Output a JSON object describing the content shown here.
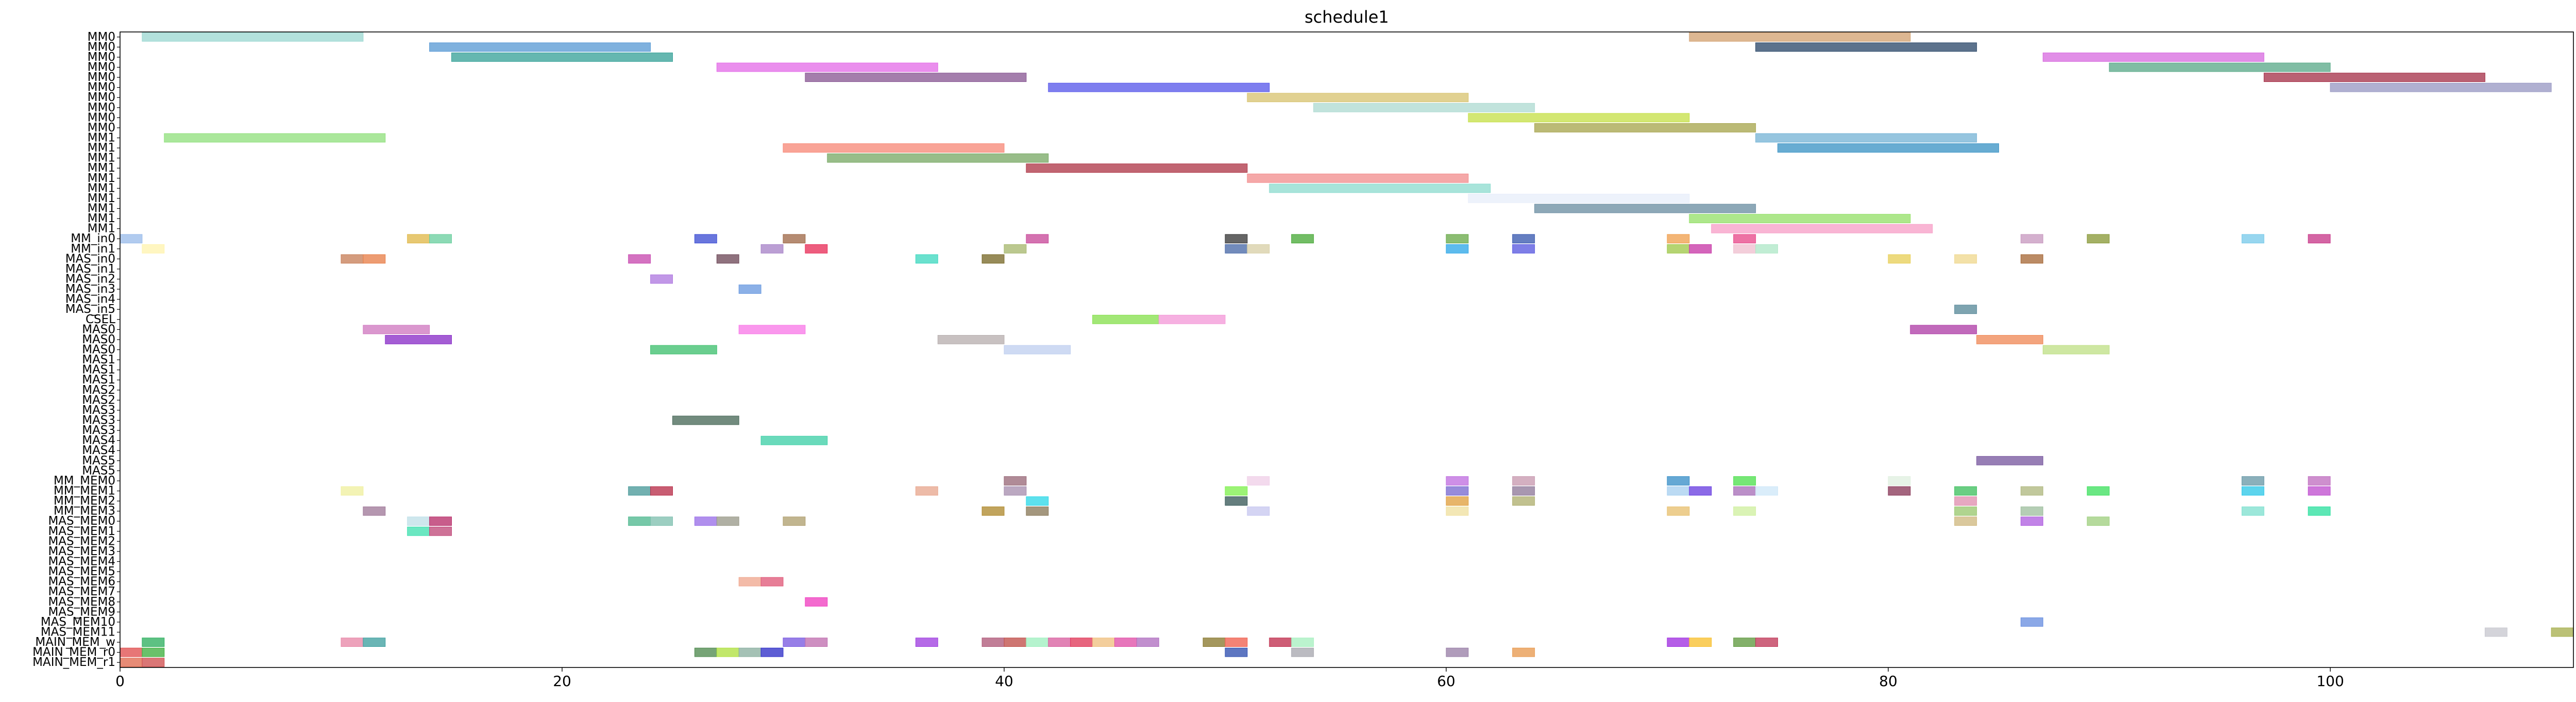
{
  "chart_data": {
    "type": "gantt",
    "title": "schedule1",
    "xlabel": "",
    "ylabel": "",
    "xlim": [
      0,
      111
    ],
    "x_ticks": [
      0,
      20,
      40,
      60,
      80,
      100
    ],
    "grid": false,
    "rows": [
      "MM0",
      "MM0",
      "MM0",
      "MM0",
      "MM0",
      "MM0",
      "MM0",
      "MM0",
      "MM0",
      "MM0",
      "MM1",
      "MM1",
      "MM1",
      "MM1",
      "MM1",
      "MM1",
      "MM1",
      "MM1",
      "MM1",
      "MM1",
      "MM_in0",
      "MM_in1",
      "MAS_in0",
      "MAS_in1",
      "MAS_in2",
      "MAS_in3",
      "MAS_in4",
      "MAS_in5",
      "CSEL",
      "MAS0",
      "MAS0",
      "MAS0",
      "MAS1",
      "MAS1",
      "MAS1",
      "MAS2",
      "MAS2",
      "MAS3",
      "MAS3",
      "MAS3",
      "MAS4",
      "MAS4",
      "MAS5",
      "MAS5",
      "MM_MEM0",
      "MM_MEM1",
      "MM_MEM2",
      "MM_MEM3",
      "MAS_MEM0",
      "MAS_MEM1",
      "MAS_MEM2",
      "MAS_MEM3",
      "MAS_MEM4",
      "MAS_MEM5",
      "MAS_MEM6",
      "MAS_MEM7",
      "MAS_MEM8",
      "MAS_MEM9",
      "MAS_MEM10",
      "MAS_MEM11",
      "MAIN_MEM_w",
      "MAIN_MEM_r0",
      "MAIN_MEM_r1"
    ],
    "tasks": [
      {
        "row": 0,
        "start": 1,
        "end": 11,
        "color": "#9dd9d2"
      },
      {
        "row": 0,
        "start": 71,
        "end": 81,
        "color": "#d4a373"
      },
      {
        "row": 1,
        "start": 14,
        "end": 24,
        "color": "#5b9bd5"
      },
      {
        "row": 1,
        "start": 74,
        "end": 84,
        "color": "#2e4a6b"
      },
      {
        "row": 2,
        "start": 15,
        "end": 25,
        "color": "#3aa39a"
      },
      {
        "row": 2,
        "start": 87,
        "end": 97,
        "color": "#d86ee0"
      },
      {
        "row": 3,
        "start": 27,
        "end": 37,
        "color": "#e46ee8"
      },
      {
        "row": 3,
        "start": 90,
        "end": 100,
        "color": "#5cab8a"
      },
      {
        "row": 4,
        "start": 31,
        "end": 41,
        "color": "#8a5a95"
      },
      {
        "row": 4,
        "start": 97,
        "end": 107,
        "color": "#a6344c"
      },
      {
        "row": 5,
        "start": 42,
        "end": 52,
        "color": "#5a5aea"
      },
      {
        "row": 5,
        "start": 100,
        "end": 110,
        "color": "#9a9ac4"
      },
      {
        "row": 6,
        "start": 51,
        "end": 61,
        "color": "#d8c472"
      },
      {
        "row": 7,
        "start": 54,
        "end": 64,
        "color": "#b0dbd2"
      },
      {
        "row": 8,
        "start": 61,
        "end": 71,
        "color": "#c6e04a"
      },
      {
        "row": 9,
        "start": 64,
        "end": 74,
        "color": "#a8a650"
      },
      {
        "row": 10,
        "start": 2,
        "end": 12,
        "color": "#92e07f"
      },
      {
        "row": 10,
        "start": 74,
        "end": 84,
        "color": "#79b5d6"
      },
      {
        "row": 11,
        "start": 30,
        "end": 40,
        "color": "#f78a7a"
      },
      {
        "row": 11,
        "start": 75,
        "end": 85,
        "color": "#3e95c5"
      },
      {
        "row": 12,
        "start": 32,
        "end": 42,
        "color": "#7bab68"
      },
      {
        "row": 13,
        "start": 41,
        "end": 51,
        "color": "#b03a4a"
      },
      {
        "row": 14,
        "start": 51,
        "end": 61,
        "color": "#f28f90"
      },
      {
        "row": 15,
        "start": 52,
        "end": 62,
        "color": "#8fdcd0"
      },
      {
        "row": 16,
        "start": 61,
        "end": 71,
        "color": "#e8eefa"
      },
      {
        "row": 17,
        "start": 64,
        "end": 74,
        "color": "#6d8fa3"
      },
      {
        "row": 18,
        "start": 71,
        "end": 81,
        "color": "#96e06a"
      },
      {
        "row": 19,
        "start": 72,
        "end": 82,
        "color": "#f7a0c8"
      },
      {
        "row": 20,
        "start": 0,
        "end": 1,
        "color": "#9bbdea"
      },
      {
        "row": 20,
        "start": 13,
        "end": 14,
        "color": "#e0b84a"
      },
      {
        "row": 20,
        "start": 14,
        "end": 15,
        "color": "#6ccfa0"
      },
      {
        "row": 20,
        "start": 26,
        "end": 27,
        "color": "#3f4fd4"
      },
      {
        "row": 20,
        "start": 30,
        "end": 31,
        "color": "#a06a4a"
      },
      {
        "row": 20,
        "start": 41,
        "end": 42,
        "color": "#c84a9a"
      },
      {
        "row": 20,
        "start": 50,
        "end": 51,
        "color": "#3a3a3a"
      },
      {
        "row": 20,
        "start": 53,
        "end": 54,
        "color": "#4aaa3a"
      },
      {
        "row": 20,
        "start": 60,
        "end": 61,
        "color": "#6aaa4a"
      },
      {
        "row": 20,
        "start": 63,
        "end": 64,
        "color": "#3a5ab0"
      },
      {
        "row": 20,
        "start": 70,
        "end": 71,
        "color": "#f0a050"
      },
      {
        "row": 20,
        "start": 73,
        "end": 74,
        "color": "#e84a8a"
      },
      {
        "row": 20,
        "start": 86,
        "end": 87,
        "color": "#c89ac0"
      },
      {
        "row": 20,
        "start": 89,
        "end": 90,
        "color": "#8a9a3a"
      },
      {
        "row": 20,
        "start": 96,
        "end": 97,
        "color": "#7acaea"
      },
      {
        "row": 20,
        "start": 99,
        "end": 100,
        "color": "#c83a8a"
      },
      {
        "row": 21,
        "start": 1,
        "end": 2,
        "color": "#fff4b0"
      },
      {
        "row": 21,
        "start": 29,
        "end": 30,
        "color": "#a884c8"
      },
      {
        "row": 21,
        "start": 31,
        "end": 32,
        "color": "#e8305a"
      },
      {
        "row": 21,
        "start": 40,
        "end": 41,
        "color": "#a8b870"
      },
      {
        "row": 21,
        "start": 50,
        "end": 51,
        "color": "#4a6aa8"
      },
      {
        "row": 21,
        "start": 51,
        "end": 52,
        "color": "#d8d0a8"
      },
      {
        "row": 21,
        "start": 60,
        "end": 61,
        "color": "#30a8e8"
      },
      {
        "row": 21,
        "start": 63,
        "end": 64,
        "color": "#5a5ae0"
      },
      {
        "row": 21,
        "start": 70,
        "end": 71,
        "color": "#a0c84a"
      },
      {
        "row": 21,
        "start": 71,
        "end": 72,
        "color": "#c83aa8"
      },
      {
        "row": 21,
        "start": 73,
        "end": 74,
        "color": "#f0c0d0"
      },
      {
        "row": 21,
        "start": 74,
        "end": 75,
        "color": "#b0e8c8"
      },
      {
        "row": 22,
        "start": 10,
        "end": 11,
        "color": "#c8805a"
      },
      {
        "row": 22,
        "start": 11,
        "end": 12,
        "color": "#e8804a"
      },
      {
        "row": 22,
        "start": 23,
        "end": 24,
        "color": "#c84ab0"
      },
      {
        "row": 22,
        "start": 27,
        "end": 28,
        "color": "#704a5a"
      },
      {
        "row": 22,
        "start": 36,
        "end": 37,
        "color": "#40d8c0"
      },
      {
        "row": 22,
        "start": 39,
        "end": 40,
        "color": "#7a6a2a"
      },
      {
        "row": 22,
        "start": 80,
        "end": 81,
        "color": "#e8d05a"
      },
      {
        "row": 22,
        "start": 83,
        "end": 84,
        "color": "#f0d890"
      },
      {
        "row": 22,
        "start": 86,
        "end": 87,
        "color": "#a86a3a"
      },
      {
        "row": 24,
        "start": 24,
        "end": 25,
        "color": "#b07ae0"
      },
      {
        "row": 25,
        "start": 28,
        "end": 29,
        "color": "#6a9ae0"
      },
      {
        "row": 27,
        "start": 83,
        "end": 84,
        "color": "#5a8a9a"
      },
      {
        "row": 28,
        "start": 44,
        "end": 47,
        "color": "#88e050"
      },
      {
        "row": 28,
        "start": 47,
        "end": 50,
        "color": "#f49ad8"
      },
      {
        "row": 29,
        "start": 11,
        "end": 14,
        "color": "#d07ac0"
      },
      {
        "row": 29,
        "start": 28,
        "end": 31,
        "color": "#f87ae8"
      },
      {
        "row": 29,
        "start": 81,
        "end": 84,
        "color": "#b040a8"
      },
      {
        "row": 30,
        "start": 12,
        "end": 15,
        "color": "#8a30c8"
      },
      {
        "row": 30,
        "start": 37,
        "end": 40,
        "color": "#b8b0b0"
      },
      {
        "row": 30,
        "start": 84,
        "end": 87,
        "color": "#f08a5a"
      },
      {
        "row": 31,
        "start": 24,
        "end": 27,
        "color": "#40c070"
      },
      {
        "row": 31,
        "start": 40,
        "end": 43,
        "color": "#c0d0f0"
      },
      {
        "row": 31,
        "start": 87,
        "end": 90,
        "color": "#c0e088"
      },
      {
        "row": 38,
        "start": 25,
        "end": 28,
        "color": "#4a6a5a"
      },
      {
        "row": 40,
        "start": 29,
        "end": 32,
        "color": "#40d0a8"
      },
      {
        "row": 42,
        "start": 84,
        "end": 87,
        "color": "#7a5aa0"
      },
      {
        "row": 44,
        "start": 40,
        "end": 41,
        "color": "#9a6a7a"
      },
      {
        "row": 44,
        "start": 51,
        "end": 52,
        "color": "#f0d0e8"
      },
      {
        "row": 44,
        "start": 60,
        "end": 61,
        "color": "#c070e0"
      },
      {
        "row": 44,
        "start": 63,
        "end": 64,
        "color": "#c89ab0"
      },
      {
        "row": 44,
        "start": 70,
        "end": 71,
        "color": "#3a90c8"
      },
      {
        "row": 44,
        "start": 73,
        "end": 74,
        "color": "#50e050"
      },
      {
        "row": 44,
        "start": 80,
        "end": 81,
        "color": "#e0f0e0"
      },
      {
        "row": 44,
        "start": 96,
        "end": 97,
        "color": "#6a9aa8"
      },
      {
        "row": 44,
        "start": 99,
        "end": 100,
        "color": "#c070c0"
      },
      {
        "row": 45,
        "start": 10,
        "end": 11,
        "color": "#f0f0a0"
      },
      {
        "row": 45,
        "start": 23,
        "end": 24,
        "color": "#4a9a9a"
      },
      {
        "row": 45,
        "start": 24,
        "end": 25,
        "color": "#b8304a"
      },
      {
        "row": 45,
        "start": 36,
        "end": 37,
        "color": "#e8a890"
      },
      {
        "row": 45,
        "start": 40,
        "end": 41,
        "color": "#a890b0"
      },
      {
        "row": 45,
        "start": 50,
        "end": 51,
        "color": "#80f050"
      },
      {
        "row": 45,
        "start": 60,
        "end": 61,
        "color": "#7a6ad0"
      },
      {
        "row": 45,
        "start": 63,
        "end": 64,
        "color": "#907a9a"
      },
      {
        "row": 45,
        "start": 70,
        "end": 71,
        "color": "#a8d0f0"
      },
      {
        "row": 45,
        "start": 71,
        "end": 72,
        "color": "#6a40e0"
      },
      {
        "row": 45,
        "start": 73,
        "end": 74,
        "color": "#a870b8"
      },
      {
        "row": 45,
        "start": 74,
        "end": 75,
        "color": "#d0e8f8"
      },
      {
        "row": 45,
        "start": 80,
        "end": 81,
        "color": "#8a3a5a"
      },
      {
        "row": 45,
        "start": 83,
        "end": 84,
        "color": "#40c060"
      },
      {
        "row": 45,
        "start": 86,
        "end": 87,
        "color": "#b0b880"
      },
      {
        "row": 45,
        "start": 89,
        "end": 90,
        "color": "#40e060"
      },
      {
        "row": 45,
        "start": 96,
        "end": 97,
        "color": "#30c8e8"
      },
      {
        "row": 45,
        "start": 99,
        "end": 100,
        "color": "#c050d0"
      },
      {
        "row": 46,
        "start": 41,
        "end": 42,
        "color": "#30d8e8"
      },
      {
        "row": 46,
        "start": 50,
        "end": 51,
        "color": "#3a5a5a"
      },
      {
        "row": 46,
        "start": 60,
        "end": 61,
        "color": "#e0a040"
      },
      {
        "row": 46,
        "start": 63,
        "end": 64,
        "color": "#b0b070"
      },
      {
        "row": 46,
        "start": 83,
        "end": 84,
        "color": "#e090b0"
      },
      {
        "row": 47,
        "start": 11,
        "end": 12,
        "color": "#a07a9a"
      },
      {
        "row": 47,
        "start": 39,
        "end": 40,
        "color": "#b08a30"
      },
      {
        "row": 47,
        "start": 41,
        "end": 42,
        "color": "#8a7a5a"
      },
      {
        "row": 47,
        "start": 51,
        "end": 52,
        "color": "#c8c8f0"
      },
      {
        "row": 47,
        "start": 60,
        "end": 61,
        "color": "#f0e0a0"
      },
      {
        "row": 47,
        "start": 70,
        "end": 71,
        "color": "#e8c070"
      },
      {
        "row": 47,
        "start": 73,
        "end": 74,
        "color": "#d0f0a0"
      },
      {
        "row": 47,
        "start": 83,
        "end": 84,
        "color": "#9ac870"
      },
      {
        "row": 47,
        "start": 86,
        "end": 87,
        "color": "#a0c0a0"
      },
      {
        "row": 47,
        "start": 96,
        "end": 97,
        "color": "#80e0d0"
      },
      {
        "row": 47,
        "start": 99,
        "end": 100,
        "color": "#30e0a0"
      },
      {
        "row": 48,
        "start": 13,
        "end": 14,
        "color": "#c0e0e8"
      },
      {
        "row": 48,
        "start": 14,
        "end": 15,
        "color": "#b8306a"
      },
      {
        "row": 48,
        "start": 23,
        "end": 24,
        "color": "#50b890"
      },
      {
        "row": 48,
        "start": 24,
        "end": 25,
        "color": "#80c0b0"
      },
      {
        "row": 48,
        "start": 26,
        "end": 27,
        "color": "#9a70e8"
      },
      {
        "row": 48,
        "start": 27,
        "end": 28,
        "color": "#9a9a8a"
      },
      {
        "row": 48,
        "start": 30,
        "end": 31,
        "color": "#b0a070"
      },
      {
        "row": 48,
        "start": 83,
        "end": 84,
        "color": "#d0b880"
      },
      {
        "row": 48,
        "start": 86,
        "end": 87,
        "color": "#b060e0"
      },
      {
        "row": 48,
        "start": 89,
        "end": 90,
        "color": "#a0d080"
      },
      {
        "row": 49,
        "start": 13,
        "end": 14,
        "color": "#40e0b0"
      },
      {
        "row": 49,
        "start": 14,
        "end": 15,
        "color": "#c04a7a"
      },
      {
        "row": 54,
        "start": 28,
        "end": 29,
        "color": "#f0a890"
      },
      {
        "row": 54,
        "start": 29,
        "end": 30,
        "color": "#e05a7a"
      },
      {
        "row": 56,
        "start": 31,
        "end": 32,
        "color": "#f040c0"
      },
      {
        "row": 58,
        "start": 86,
        "end": 87,
        "color": "#6a90e0"
      },
      {
        "row": 59,
        "start": 107,
        "end": 108,
        "color": "#c8c8d0"
      },
      {
        "row": 59,
        "start": 110,
        "end": 111,
        "color": "#a8b050"
      },
      {
        "row": 60,
        "start": 1,
        "end": 2,
        "color": "#30b060"
      },
      {
        "row": 60,
        "start": 10,
        "end": 11,
        "color": "#e888a8"
      },
      {
        "row": 60,
        "start": 11,
        "end": 12,
        "color": "#40a0a0"
      },
      {
        "row": 60,
        "start": 30,
        "end": 31,
        "color": "#7a5ae0"
      },
      {
        "row": 60,
        "start": 31,
        "end": 32,
        "color": "#c070b0"
      },
      {
        "row": 60,
        "start": 36,
        "end": 37,
        "color": "#a040e0"
      },
      {
        "row": 60,
        "start": 39,
        "end": 40,
        "color": "#b05a7a"
      },
      {
        "row": 60,
        "start": 40,
        "end": 41,
        "color": "#c0504a"
      },
      {
        "row": 60,
        "start": 41,
        "end": 42,
        "color": "#a0f0c0"
      },
      {
        "row": 60,
        "start": 42,
        "end": 43,
        "color": "#d860a0"
      },
      {
        "row": 60,
        "start": 43,
        "end": 44,
        "color": "#e03a5a"
      },
      {
        "row": 60,
        "start": 44,
        "end": 45,
        "color": "#f0c080"
      },
      {
        "row": 60,
        "start": 45,
        "end": 46,
        "color": "#e050a8"
      },
      {
        "row": 60,
        "start": 46,
        "end": 47,
        "color": "#b070c0"
      },
      {
        "row": 60,
        "start": 49,
        "end": 50,
        "color": "#8a7a30"
      },
      {
        "row": 60,
        "start": 50,
        "end": 51,
        "color": "#f06050"
      },
      {
        "row": 60,
        "start": 52,
        "end": 53,
        "color": "#c03050"
      },
      {
        "row": 60,
        "start": 53,
        "end": 54,
        "color": "#a8f0c0"
      },
      {
        "row": 60,
        "start": 70,
        "end": 71,
        "color": "#a030e0"
      },
      {
        "row": 60,
        "start": 71,
        "end": 72,
        "color": "#f8c030"
      },
      {
        "row": 60,
        "start": 73,
        "end": 74,
        "color": "#609a40"
      },
      {
        "row": 60,
        "start": 74,
        "end": 75,
        "color": "#c03a5a"
      },
      {
        "row": 61,
        "start": 0,
        "end": 1,
        "color": "#e05050"
      },
      {
        "row": 61,
        "start": 1,
        "end": 2,
        "color": "#40b040"
      },
      {
        "row": 61,
        "start": 26,
        "end": 27,
        "color": "#508a50"
      },
      {
        "row": 61,
        "start": 27,
        "end": 28,
        "color": "#b0e040"
      },
      {
        "row": 61,
        "start": 28,
        "end": 29,
        "color": "#8ab0a0"
      },
      {
        "row": 61,
        "start": 29,
        "end": 30,
        "color": "#3030c8"
      },
      {
        "row": 61,
        "start": 50,
        "end": 51,
        "color": "#3050b0"
      },
      {
        "row": 61,
        "start": 53,
        "end": 54,
        "color": "#a8a8b0"
      },
      {
        "row": 61,
        "start": 60,
        "end": 61,
        "color": "#9a80a8"
      },
      {
        "row": 61,
        "start": 63,
        "end": 64,
        "color": "#e89a50"
      },
      {
        "row": 62,
        "start": 0,
        "end": 1,
        "color": "#e06a50"
      },
      {
        "row": 62,
        "start": 1,
        "end": 2,
        "color": "#d05050"
      }
    ]
  }
}
